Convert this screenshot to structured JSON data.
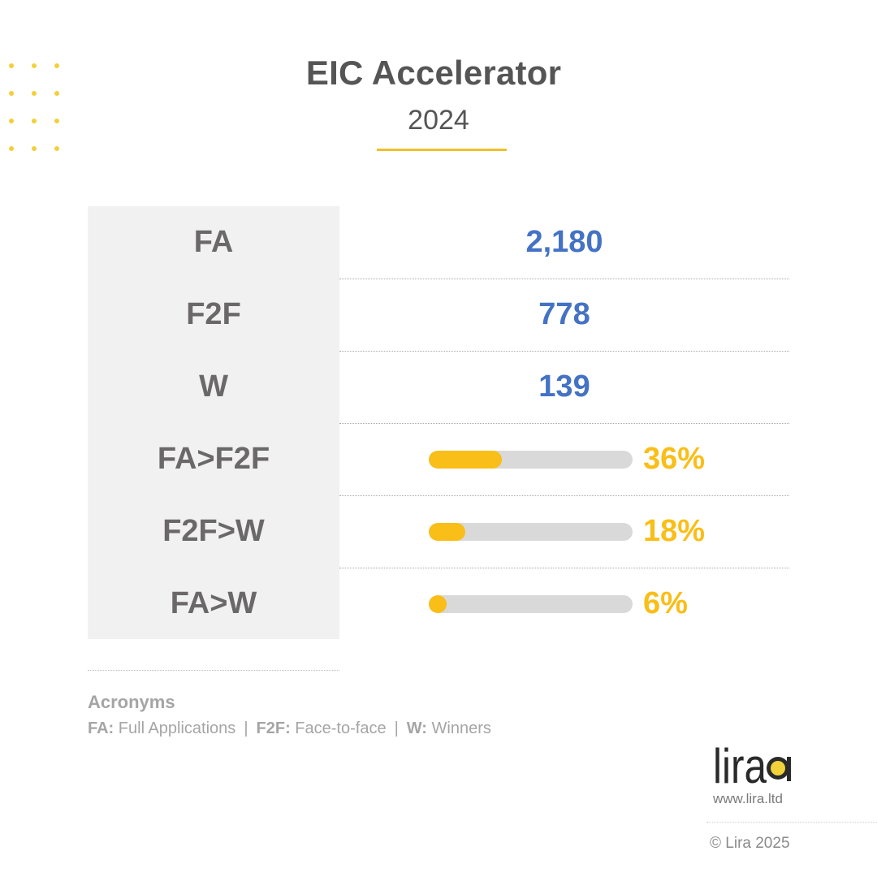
{
  "header": {
    "title": "EIC Accelerator",
    "subtitle": "2024"
  },
  "accent_color": "#f9be17",
  "value_color": "#4472c4",
  "chart_data": {
    "type": "table",
    "rows": [
      {
        "label": "FA",
        "value": "2,180"
      },
      {
        "label": "F2F",
        "value": "778"
      },
      {
        "label": "W",
        "value": "139"
      },
      {
        "label": "FA>F2F",
        "percent": 36,
        "percent_text": "36%"
      },
      {
        "label": "F2F>W",
        "percent": 18,
        "percent_text": "18%"
      },
      {
        "label": "FA>W",
        "percent": 6,
        "percent_text": "6%"
      }
    ]
  },
  "acronyms": {
    "title": "Acronyms",
    "items": [
      {
        "key": "FA:",
        "desc": "Full Applications"
      },
      {
        "key": "F2F:",
        "desc": "Face-to-face"
      },
      {
        "key": "W:",
        "desc": "Winners"
      }
    ],
    "separator": "|"
  },
  "brand": {
    "logo_text": "lira",
    "url": "www.lira.ltd",
    "copyright": "© Lira 2025"
  }
}
